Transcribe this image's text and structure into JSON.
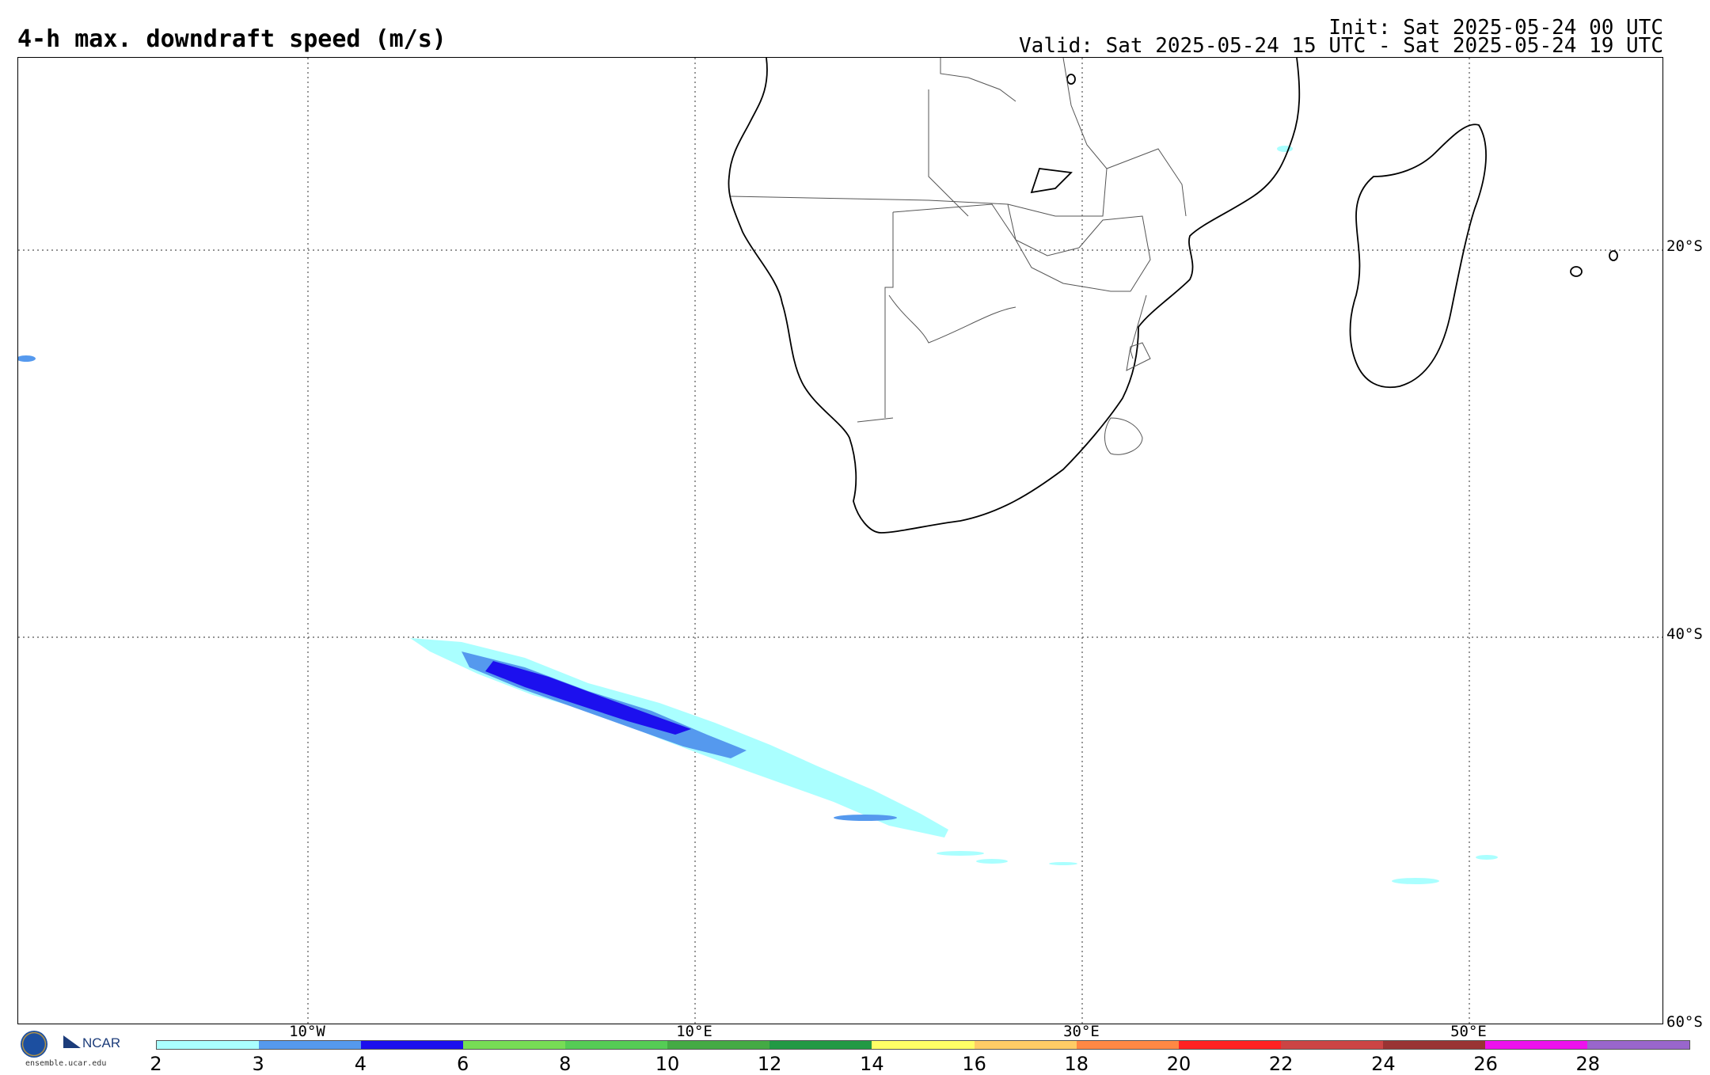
{
  "header": {
    "title": "4-h max. downdraft speed (m/s)",
    "init": "Init: Sat 2025-05-24 00 UTC",
    "valid": "Valid: Sat 2025-05-24 15 UTC - Sat 2025-05-24 19 UTC"
  },
  "map": {
    "lat_labels": [
      "20°S",
      "40°S",
      "60°S"
    ],
    "lon_labels": [
      "10°W",
      "10°E",
      "30°E",
      "50°E"
    ]
  },
  "colorbar": {
    "ticks": [
      "2",
      "3",
      "4",
      "6",
      "8",
      "10",
      "12",
      "14",
      "16",
      "18",
      "20",
      "22",
      "24",
      "26",
      "28"
    ],
    "colors": [
      "#aaffff",
      "#5599ee",
      "#1c10ee",
      "#77dd55",
      "#55cc55",
      "#44aa44",
      "#229944",
      "#ffff66",
      "#ffcc66",
      "#ff8844",
      "#ff2222",
      "#cc4444",
      "#993333",
      "#ee11ee",
      "#9966cc"
    ]
  },
  "logo": {
    "org": "NCAR",
    "url": "ensemble.ucar.edu"
  }
}
